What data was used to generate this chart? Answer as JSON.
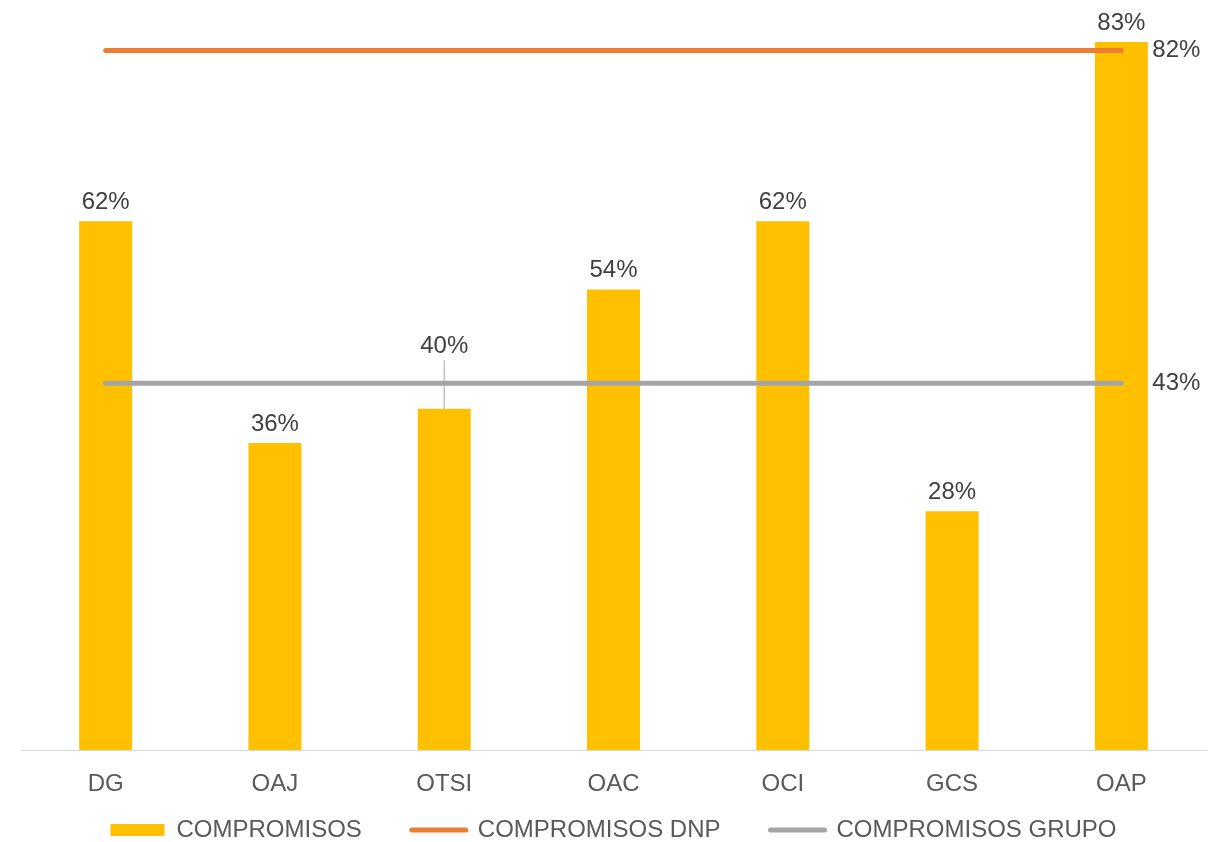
{
  "chart_data": {
    "type": "bar",
    "categories": [
      "DG",
      "OAJ",
      "OTSI",
      "OAC",
      "OCI",
      "GCS",
      "OAP"
    ],
    "series": [
      {
        "name": "COMPROMISOS",
        "color": "#ffc000",
        "values": [
          62,
          36,
          40,
          54,
          62,
          28,
          83
        ],
        "value_labels": [
          "62%",
          "36%",
          "40%",
          "54%",
          "62%",
          "28%",
          "83%"
        ]
      },
      {
        "name": "COMPROMISOS DNP",
        "type": "line",
        "color": "#ed7d31",
        "values": [
          82,
          82,
          82,
          82,
          82,
          82,
          82
        ],
        "value_labels": [
          null,
          null,
          null,
          null,
          null,
          null,
          "82%"
        ]
      },
      {
        "name": "COMPROMISOS GRUPO",
        "type": "line",
        "color": "#a5a5a5",
        "values": [
          43,
          43,
          43,
          43,
          43,
          43,
          43
        ],
        "value_labels": [
          null,
          null,
          null,
          null,
          null,
          null,
          "43%"
        ]
      }
    ],
    "legend": "bottom",
    "grid": false,
    "marker": "none"
  }
}
